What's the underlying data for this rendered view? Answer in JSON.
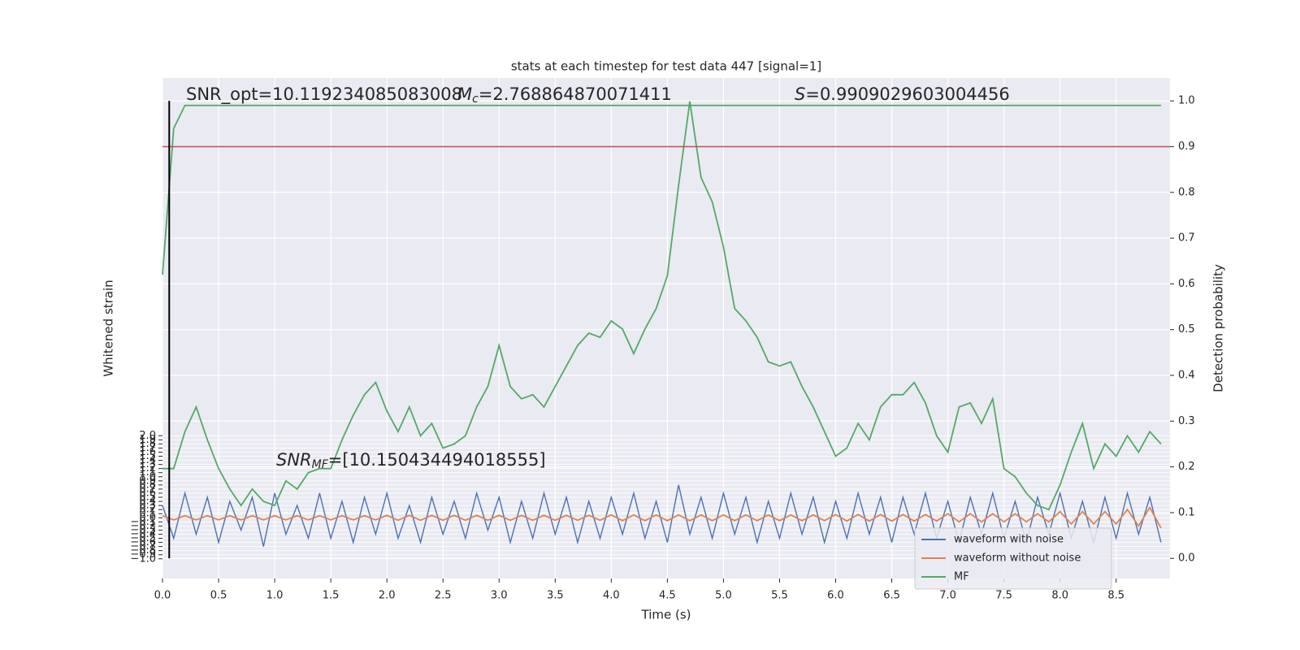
{
  "chart_data": {
    "type": "line",
    "title": "stats at each timestep for test data 447 [signal=1]",
    "x_label": "Time (s)",
    "y_label": "Whitened strain",
    "y2_label": "Detection probability",
    "annotations": [
      {
        "label": "SNR_opt=10.119234085083008"
      },
      {
        "label": "M",
        "sub": "c",
        "text": "=2.768864870071411"
      },
      {
        "label": "S",
        "text": "=0.9909029603004456"
      },
      {
        "label": "SNR",
        "sub": "MF",
        "text": "=[10.150434494018555]"
      }
    ],
    "xlim": [
      0,
      8.98
    ],
    "ylim": [
      -1.48,
      10.72
    ],
    "y2lim": [
      -0.044,
      1.05
    ],
    "xticks": [
      {
        "value": 0,
        "label": "0.0"
      },
      0.5,
      {
        "value": 1,
        "label": "1.0"
      },
      1.5,
      {
        "value": 2,
        "label": "2.0"
      },
      2.5,
      {
        "value": 3,
        "label": "3.0"
      },
      3.5,
      {
        "value": 4,
        "label": "4.0"
      },
      4.5,
      {
        "value": 5,
        "label": "5.0"
      },
      5.5,
      {
        "value": 6,
        "label": "6.0"
      },
      6.5,
      {
        "value": 7,
        "label": "7.0"
      },
      7.5,
      {
        "value": 8,
        "label": "8.0"
      },
      8.5
    ],
    "yticks": [
      {
        "value": -1,
        "label": "−1.0"
      },
      {
        "value": -0.9,
        "label": "−0.9"
      },
      {
        "value": -0.8,
        "label": "−0.8"
      },
      {
        "value": -0.7,
        "label": "−0.7"
      },
      {
        "value": -0.6,
        "label": "−0.6"
      },
      {
        "value": -0.5,
        "label": "−0.5"
      },
      {
        "value": -0.4,
        "label": "−0.4"
      },
      {
        "value": -0.3,
        "label": "−0.3"
      },
      {
        "value": -0.2,
        "label": "−0.2"
      },
      {
        "value": -0.1,
        "label": "−0.1"
      },
      {
        "value": 0,
        "label": "0.0"
      },
      0.1,
      0.2,
      0.3,
      0.4,
      0.5,
      0.6,
      0.7,
      0.8,
      0.9,
      {
        "value": 1,
        "label": "1.0"
      },
      1.1,
      1.2,
      1.3,
      1.4,
      1.5,
      1.6,
      1.7,
      1.8,
      1.9,
      {
        "value": 2,
        "label": "2.0"
      }
    ],
    "y2ticks": [
      {
        "value": 0,
        "label": "0.0"
      },
      0.1,
      0.2,
      0.3,
      0.4,
      0.5,
      0.6,
      0.7,
      0.8,
      0.9,
      {
        "value": 1,
        "label": "1.0"
      }
    ],
    "grid": true,
    "legend": "lower right",
    "threshold": 0.9,
    "threshold_color": "#c44e52",
    "marker_x": 0.06,
    "x": [
      0,
      0.1,
      0.2,
      0.3,
      0.4,
      0.5,
      0.6,
      0.7,
      0.8,
      0.9,
      1,
      1.1,
      1.2,
      1.3,
      1.4,
      1.5,
      1.6,
      1.7,
      1.8,
      1.9,
      2,
      2.1,
      2.2,
      2.3,
      2.4,
      2.5,
      2.6,
      2.7,
      2.8,
      2.9,
      3,
      3.1,
      3.2,
      3.3,
      3.4,
      3.5,
      3.6,
      3.7,
      3.8,
      3.9,
      4,
      4.1,
      4.2,
      4.3,
      4.4,
      4.5,
      4.6,
      4.7,
      4.8,
      4.9,
      5,
      5.1,
      5.2,
      5.3,
      5.4,
      5.5,
      5.6,
      5.7,
      5.8,
      5.9,
      6,
      6.1,
      6.2,
      6.3,
      6.4,
      6.5,
      6.6,
      6.7,
      6.8,
      6.9,
      7,
      7.1,
      7.2,
      7.3,
      7.4,
      7.5,
      7.6,
      7.7,
      7.8,
      7.9,
      8,
      8.1,
      8.2,
      8.3,
      8.4,
      8.5,
      8.6,
      8.7,
      8.8,
      8.9
    ],
    "series": [
      {
        "name": "waveform with noise",
        "color": "#4c72b0",
        "values": [
          0.3,
          -0.5,
          0.6,
          -0.4,
          0.5,
          -0.6,
          0.4,
          -0.3,
          0.5,
          -0.7,
          0.6,
          -0.4,
          0.3,
          -0.5,
          0.6,
          -0.5,
          0.4,
          -0.6,
          0.5,
          -0.4,
          0.6,
          -0.5,
          0.3,
          -0.6,
          0.5,
          -0.4,
          0.4,
          -0.5,
          0.6,
          -0.3,
          0.5,
          -0.6,
          0.4,
          -0.5,
          0.6,
          -0.4,
          0.5,
          -0.6,
          0.4,
          -0.5,
          0.5,
          -0.4,
          0.6,
          -0.5,
          0.4,
          -0.6,
          0.8,
          -0.4,
          0.5,
          -0.5,
          0.6,
          -0.4,
          0.5,
          -0.6,
          0.4,
          -0.5,
          0.6,
          -0.4,
          0.5,
          -0.6,
          0.4,
          -0.5,
          0.6,
          -0.4,
          0.5,
          -0.6,
          0.5,
          -0.4,
          0.6,
          -0.5,
          0.4,
          -0.6,
          0.5,
          -0.4,
          0.6,
          -0.5,
          0.4,
          -0.6,
          0.5,
          -0.4,
          0.6,
          -0.5,
          0.4,
          -0.6,
          0.5,
          -0.5,
          0.6,
          -0.4,
          0.5,
          -0.6
        ]
      },
      {
        "name": "waveform without noise",
        "color": "#dd8452",
        "values": [
          0.05,
          -0.05,
          0.05,
          -0.05,
          0.05,
          -0.05,
          0.05,
          -0.05,
          0.05,
          -0.05,
          0.05,
          -0.05,
          0.05,
          -0.05,
          0.05,
          -0.05,
          0.05,
          -0.05,
          0.05,
          -0.05,
          0.06,
          -0.06,
          0.06,
          -0.06,
          0.06,
          -0.06,
          0.06,
          -0.06,
          0.06,
          -0.06,
          0.06,
          -0.06,
          0.06,
          -0.06,
          0.06,
          -0.06,
          0.06,
          -0.06,
          0.06,
          -0.06,
          0.07,
          -0.07,
          0.07,
          -0.07,
          0.07,
          -0.07,
          0.07,
          -0.07,
          0.07,
          -0.07,
          0.07,
          -0.07,
          0.07,
          -0.07,
          0.07,
          -0.07,
          0.07,
          -0.07,
          0.07,
          -0.07,
          0.08,
          -0.08,
          0.08,
          -0.08,
          0.08,
          -0.08,
          0.08,
          -0.08,
          0.08,
          -0.08,
          0.1,
          -0.1,
          0.1,
          -0.1,
          0.1,
          -0.1,
          0.1,
          -0.1,
          0.1,
          -0.1,
          0.15,
          -0.15,
          0.15,
          -0.15,
          0.15,
          -0.15,
          0.2,
          -0.2,
          0.25,
          -0.25
        ]
      },
      {
        "name": "MF",
        "color": "#55a868",
        "values": [
          1.2,
          1.2,
          2.1,
          2.7,
          1.9,
          1.2,
          0.7,
          0.3,
          0.7,
          0.4,
          0.3,
          0.9,
          0.7,
          1.1,
          1.2,
          1.2,
          1.9,
          2.5,
          3.0,
          3.3,
          2.6,
          2.1,
          2.7,
          2.0,
          2.3,
          1.7,
          1.8,
          2.0,
          2.7,
          3.2,
          4.2,
          3.2,
          2.9,
          3.0,
          2.7,
          3.2,
          3.7,
          4.2,
          4.5,
          4.4,
          4.8,
          4.6,
          4.0,
          4.6,
          5.1,
          5.9,
          8.1,
          10.15,
          8.3,
          7.7,
          6.6,
          5.1,
          4.8,
          4.4,
          3.8,
          3.7,
          3.8,
          3.2,
          2.7,
          2.1,
          1.5,
          1.7,
          2.3,
          1.9,
          2.7,
          3.0,
          3.0,
          3.3,
          2.8,
          2.0,
          1.6,
          2.7,
          2.8,
          2.3,
          2.9,
          1.2,
          1.0,
          0.6,
          0.3,
          0.2,
          0.8,
          1.6,
          2.3,
          1.2,
          1.8,
          1.5,
          2.0,
          1.6,
          2.1,
          1.8
        ]
      },
      {
        "color": "#55a868",
        "axis": "y2",
        "values": [
          0.62,
          0.94,
          0.99,
          0.99,
          0.99,
          0.99,
          0.99,
          0.99,
          0.99,
          0.99,
          0.99,
          0.99,
          0.99,
          0.99,
          0.99,
          0.99,
          0.99,
          0.99,
          0.99,
          0.99,
          0.99,
          0.99,
          0.99,
          0.99,
          0.99,
          0.99,
          0.99,
          0.99,
          0.99,
          0.99,
          0.99,
          0.99,
          0.99,
          0.99,
          0.99,
          0.99,
          0.99,
          0.99,
          0.99,
          0.99,
          0.99,
          0.99,
          0.99,
          0.99,
          0.99,
          0.99,
          0.99,
          0.99,
          0.99,
          0.99,
          0.99,
          0.99,
          0.99,
          0.99,
          0.99,
          0.99,
          0.99,
          0.99,
          0.99,
          0.99,
          0.99,
          0.99,
          0.99,
          0.99,
          0.99,
          0.99,
          0.99,
          0.99,
          0.99,
          0.99,
          0.99,
          0.99,
          0.99,
          0.99,
          0.99,
          0.99,
          0.99,
          0.99,
          0.99,
          0.99,
          0.99,
          0.99,
          0.99,
          0.99,
          0.99,
          0.99,
          0.99,
          0.99,
          0.99,
          0.99
        ]
      }
    ]
  }
}
